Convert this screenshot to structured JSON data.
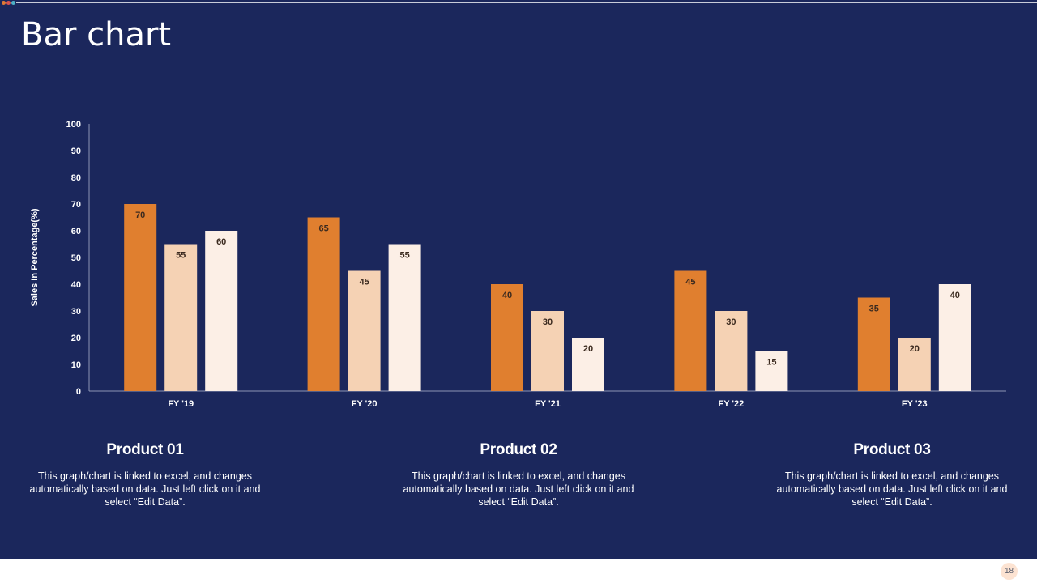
{
  "slide": {
    "title": "Bar chart",
    "page_number": "18",
    "colors": {
      "background": "#1b275c",
      "accent_dots": [
        "#e07a35",
        "#d9534f",
        "#4fb0c6"
      ]
    }
  },
  "chart_data": {
    "type": "bar",
    "title": "",
    "xlabel": "",
    "ylabel": "Sales In Percentage(%)",
    "ylim": [
      0,
      100
    ],
    "yticks": [
      0,
      10,
      20,
      30,
      40,
      50,
      60,
      70,
      80,
      90,
      100
    ],
    "categories": [
      "FY '19",
      "FY '20",
      "FY '21",
      "FY '22",
      "FY '23"
    ],
    "series": [
      {
        "name": "Product 01",
        "color": "#e07f2f",
        "values": [
          70,
          65,
          40,
          45,
          35
        ]
      },
      {
        "name": "Product 02",
        "color": "#f5d2b4",
        "values": [
          55,
          45,
          30,
          30,
          20
        ]
      },
      {
        "name": "Product 03",
        "color": "#fcefe6",
        "values": [
          60,
          55,
          20,
          15,
          40
        ]
      }
    ],
    "grid": false,
    "legend": "none"
  },
  "products": [
    {
      "name": "Product 01",
      "text": "This graph/chart is linked to excel, and changes automatically based on data. Just left click on it and select “Edit Data”."
    },
    {
      "name": "Product 02",
      "text": "This graph/chart is linked to excel, and changes automatically based on data. Just left click on it and select “Edit Data”."
    },
    {
      "name": "Product 03",
      "text": "This graph/chart is linked to excel, and changes automatically based on data. Just left click on it and select “Edit Data”."
    }
  ]
}
